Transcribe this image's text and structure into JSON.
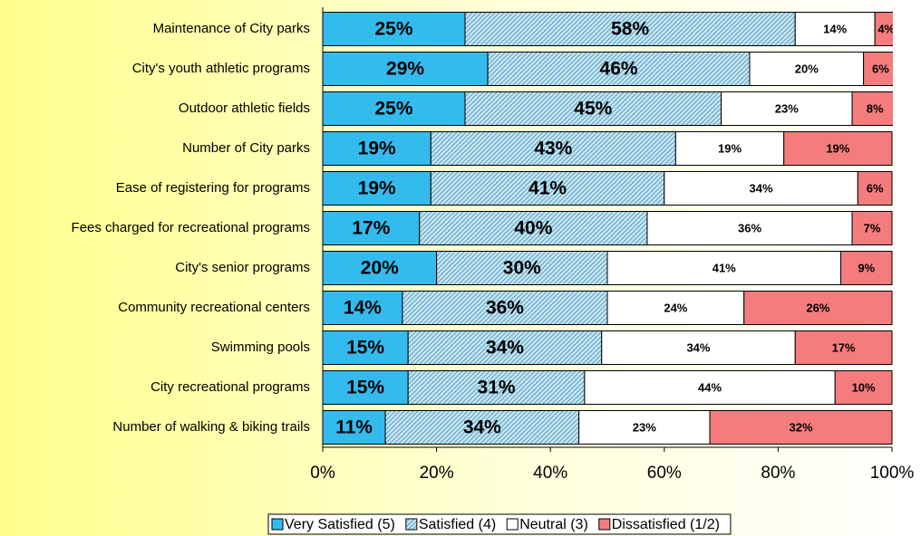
{
  "chart_data": {
    "type": "stacked_barh",
    "categories": [
      "Maintenance of City parks",
      "City's youth athletic programs",
      "Outdoor athletic fields",
      "Number of City parks",
      "Ease of registering for programs",
      "Fees charged for recreational programs",
      "City's senior programs",
      "Community recreational centers",
      "Swimming pools",
      "City recreational programs",
      "Number of walking & biking trails"
    ],
    "series": [
      {
        "name": "Very Satisfied (5)",
        "color": "#33bbee",
        "hatch": false,
        "values": [
          25,
          29,
          25,
          19,
          19,
          17,
          20,
          14,
          15,
          15,
          11
        ],
        "value_labels": [
          "25%",
          "29%",
          "25%",
          "19%",
          "19%",
          "17%",
          "20%",
          "14%",
          "15%",
          "15%",
          "11%"
        ]
      },
      {
        "name": "Satisfied (4)",
        "color": "#bfe6f6",
        "hatch": true,
        "values": [
          58,
          46,
          45,
          43,
          41,
          40,
          30,
          36,
          34,
          31,
          34
        ],
        "value_labels": [
          "58%",
          "46%",
          "45%",
          "43%",
          "41%",
          "40%",
          "30%",
          "36%",
          "34%",
          "31%",
          "34%"
        ]
      },
      {
        "name": "Neutral (3)",
        "color": "#ffffff",
        "hatch": false,
        "values": [
          14,
          20,
          23,
          19,
          34,
          36,
          41,
          24,
          34,
          44,
          23
        ],
        "value_labels": [
          "14%",
          "20%",
          "23%",
          "19%",
          "34%",
          "36%",
          "41%",
          "24%",
          "34%",
          "44%",
          "23%"
        ]
      },
      {
        "name": "Dissatisfied (1/2)",
        "color": "#f47c7c",
        "hatch": false,
        "values": [
          4,
          6,
          8,
          19,
          6,
          7,
          9,
          26,
          17,
          10,
          32
        ],
        "value_labels": [
          "4%",
          "6%",
          "8%",
          "19%",
          "6%",
          "7%",
          "9%",
          "26%",
          "17%",
          "10%",
          "32%"
        ]
      }
    ],
    "xlim": [
      0,
      100
    ],
    "xticks": [
      {
        "value": 0,
        "label": "0%"
      },
      {
        "value": 20,
        "label": "20%"
      },
      {
        "value": 40,
        "label": "40%"
      },
      {
        "value": 60,
        "label": "60%"
      },
      {
        "value": 80,
        "label": "80%"
      },
      {
        "value": 100,
        "label": "100%"
      }
    ],
    "grid": false,
    "legend": "bottom"
  }
}
